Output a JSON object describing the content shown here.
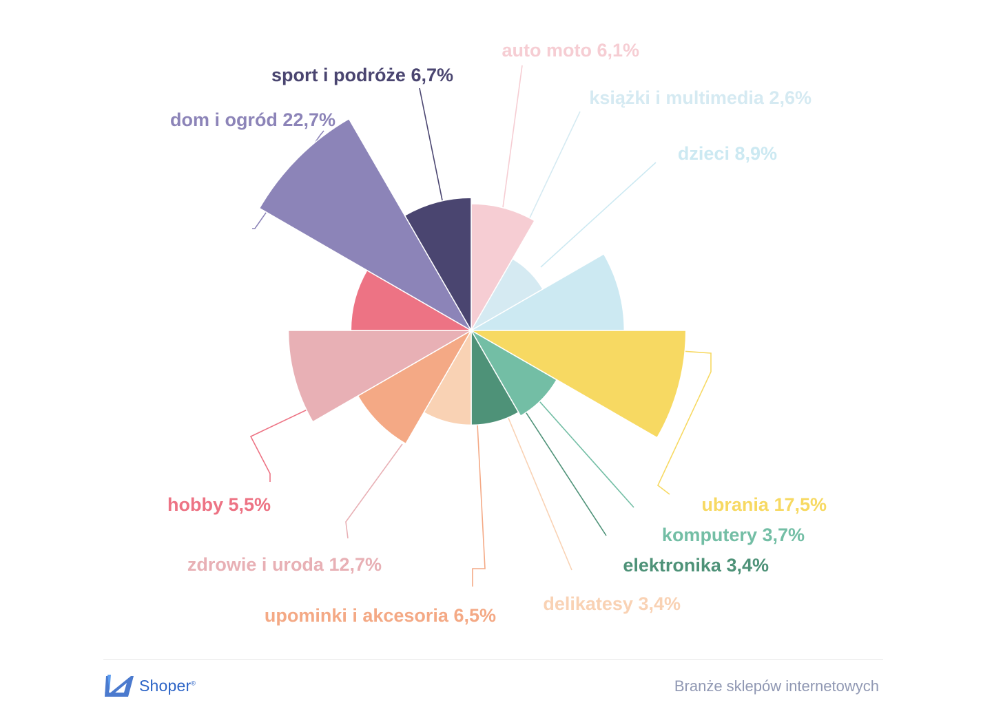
{
  "chart_data": {
    "type": "pie",
    "variant": "polar-area",
    "title": "",
    "series": [
      {
        "label": "auto moto 6,1%",
        "value": 6.1,
        "color": "#f6cdd3"
      },
      {
        "label": "książki i multimedia 2,6%",
        "value": 2.6,
        "color": "#d5eaf2"
      },
      {
        "label": "dzieci 8,9%",
        "value": 8.9,
        "color": "#cce9f2"
      },
      {
        "label": "ubrania 17,5%",
        "value": 17.5,
        "color": "#f7d962"
      },
      {
        "label": "komputery 3,7%",
        "value": 3.7,
        "color": "#73bea5"
      },
      {
        "label": "elektronika 3,4%",
        "value": 3.4,
        "color": "#4e9278"
      },
      {
        "label": "delikatesy 3,4%",
        "value": 3.4,
        "color": "#f9d2b4"
      },
      {
        "label": "upominki i akcesoria 6,5%",
        "value": 6.5,
        "color": "#f4a985"
      },
      {
        "label": "zdrowie i uroda 12,7%",
        "value": 12.7,
        "color": "#e8b0b5"
      },
      {
        "label": "hobby 5,5%",
        "value": 5.5,
        "color": "#ed7384"
      },
      {
        "label": "dom i ogród 22,7%",
        "value": 22.7,
        "color": "#8c84b8"
      },
      {
        "label": "sport i podróże 6,7%",
        "value": 6.7,
        "color": "#4a4570"
      }
    ]
  },
  "footer": {
    "brand_name": "Shoper",
    "brand_mark": "®",
    "caption": "Branże sklepów internetowych"
  },
  "colors": {
    "brand": "#2b63c6",
    "caption": "#9098b3"
  }
}
